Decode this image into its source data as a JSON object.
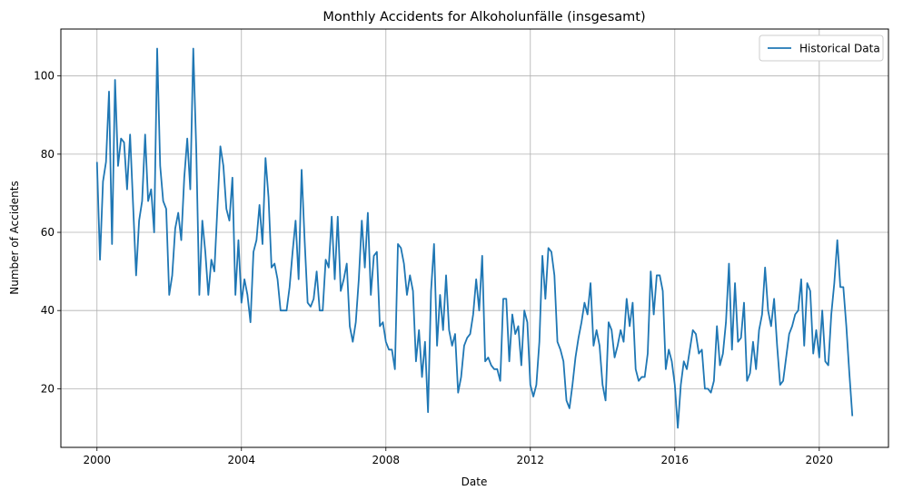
{
  "chart_data": {
    "type": "line",
    "title": "Monthly Accidents for Alkoholunfälle (insgesamt)",
    "xlabel": "Date",
    "ylabel": "Number of Accidents",
    "x_start": "2000-01",
    "x_frequency": "monthly",
    "xlim": [
      "1999-01",
      "2021-12"
    ],
    "ylim": [
      5,
      112
    ],
    "xticks": [
      {
        "value": 2000,
        "label": "2000"
      },
      {
        "value": 2004,
        "label": "2004"
      },
      {
        "value": 2008,
        "label": "2008"
      },
      {
        "value": 2012,
        "label": "2012"
      },
      {
        "value": 2016,
        "label": "2016"
      },
      {
        "value": 2020,
        "label": "2020"
      }
    ],
    "yticks": [
      {
        "value": 20,
        "label": "20"
      },
      {
        "value": 40,
        "label": "40"
      },
      {
        "value": 60,
        "label": "60"
      },
      {
        "value": 80,
        "label": "80"
      },
      {
        "value": 100,
        "label": "100"
      }
    ],
    "grid": true,
    "legend_position": "top-right",
    "series": [
      {
        "name": "Historical Data",
        "color": "#1f77b4",
        "values": [
          78,
          53,
          73,
          78,
          96,
          57,
          99,
          77,
          84,
          83,
          71,
          85,
          67,
          49,
          63,
          68,
          85,
          68,
          71,
          60,
          107,
          77,
          68,
          66,
          44,
          49,
          61,
          65,
          58,
          74,
          84,
          71,
          107,
          81,
          44,
          63,
          55,
          44,
          53,
          50,
          66,
          82,
          77,
          66,
          63,
          74,
          44,
          58,
          42,
          48,
          44,
          37,
          55,
          58,
          67,
          57,
          79,
          69,
          51,
          52,
          48,
          40,
          40,
          40,
          46,
          55,
          63,
          48,
          76,
          58,
          42,
          41,
          43,
          50,
          40,
          40,
          53,
          51,
          64,
          48,
          64,
          45,
          48,
          52,
          36,
          32,
          37,
          48,
          63,
          51,
          65,
          44,
          54,
          55,
          36,
          37,
          32,
          30,
          30,
          25,
          57,
          56,
          52,
          44,
          49,
          45,
          27,
          35,
          23,
          32,
          14,
          45,
          57,
          31,
          44,
          35,
          49,
          35,
          31,
          34,
          19,
          23,
          31,
          33,
          34,
          39,
          48,
          40,
          54,
          27,
          28,
          26,
          25,
          25,
          22,
          43,
          43,
          27,
          39,
          34,
          36,
          26,
          40,
          37,
          21,
          18,
          21,
          32,
          54,
          43,
          56,
          55,
          49,
          32,
          30,
          27,
          17,
          15,
          21,
          28,
          33,
          37,
          42,
          39,
          47,
          31,
          35,
          31,
          21,
          17,
          37,
          35,
          28,
          31,
          35,
          32,
          43,
          36,
          42,
          25,
          22,
          23,
          23,
          29,
          50,
          39,
          49,
          49,
          45,
          25,
          30,
          27,
          21,
          10,
          21,
          27,
          25,
          30,
          35,
          34,
          29,
          30,
          20,
          20,
          19,
          22,
          36,
          26,
          29,
          37,
          52,
          30,
          47,
          32,
          33,
          42,
          22,
          24,
          32,
          25,
          35,
          39,
          51,
          40,
          36,
          43,
          31,
          21,
          22,
          28,
          34,
          36,
          39,
          40,
          48,
          31,
          47,
          45,
          29,
          35,
          28,
          40,
          27,
          26,
          39,
          47,
          58,
          46,
          46,
          36,
          24,
          13
        ]
      }
    ]
  }
}
